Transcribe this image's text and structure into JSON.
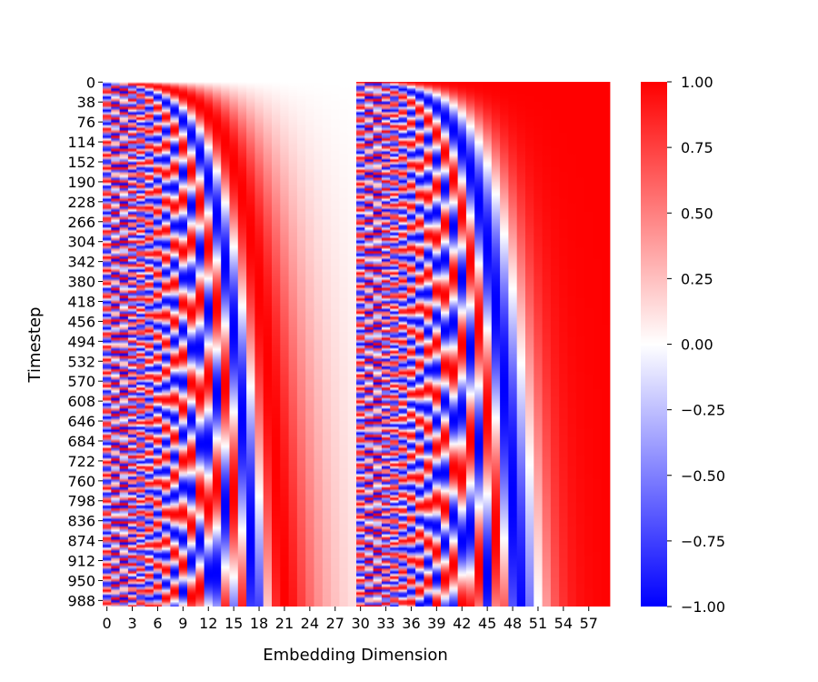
{
  "chart_data": {
    "type": "heatmap",
    "title": "",
    "xlabel": "Embedding Dimension",
    "ylabel": "Timestep",
    "n_cols": 60,
    "n_rows": 1000,
    "x_ticks": [
      "0",
      "3",
      "6",
      "9",
      "12",
      "15",
      "18",
      "21",
      "24",
      "27",
      "30",
      "33",
      "36",
      "39",
      "42",
      "45",
      "48",
      "51",
      "54",
      "57"
    ],
    "y_ticks": [
      "0",
      "38",
      "76",
      "114",
      "152",
      "190",
      "228",
      "266",
      "304",
      "342",
      "380",
      "418",
      "456",
      "494",
      "532",
      "570",
      "608",
      "646",
      "684",
      "722",
      "760",
      "798",
      "836",
      "874",
      "912",
      "950",
      "988"
    ],
    "values_description": "sinusoidal timestep embedding: columns 0-29 = sin(t * w_i), columns 30-59 = cos(t * w_i), w_i = 10000^(-i/30)",
    "colormap": "bwr",
    "colorbar": {
      "min": -1.0,
      "max": 1.0,
      "ticks": [
        "1.00",
        "0.75",
        "0.50",
        "0.25",
        "0.00",
        "−0.25",
        "−0.50",
        "−0.75",
        "−1.00"
      ],
      "colors": {
        "low": "#0000ff",
        "mid": "#ffffff",
        "high": "#ff0000"
      }
    },
    "grid": false,
    "legend": "none"
  }
}
